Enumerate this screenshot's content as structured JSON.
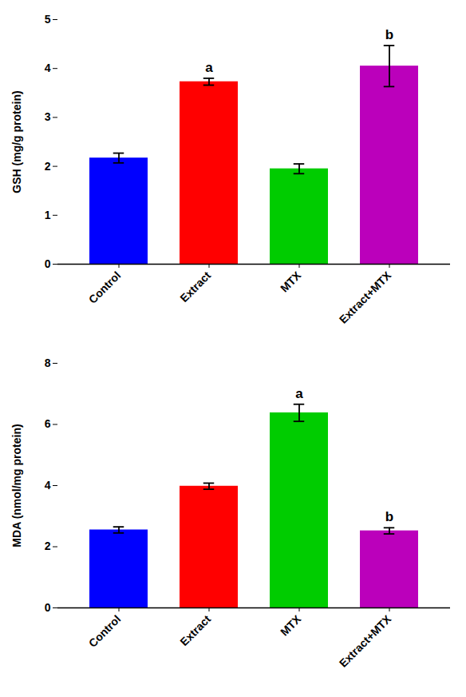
{
  "chart_data": [
    {
      "type": "bar",
      "categories": [
        "Control",
        "Extract",
        "MTX",
        "Extract+MTX"
      ],
      "values": [
        2.17,
        3.73,
        1.95,
        4.05
      ],
      "errors": [
        0.1,
        0.07,
        0.1,
        0.42
      ],
      "colors": [
        "#0000FF",
        "#FF0000",
        "#00CC00",
        "#BB00BB"
      ],
      "ylabel": "GSH (mg/g protein)",
      "ylim": [
        0,
        5
      ],
      "yticks": [
        0,
        1,
        2,
        3,
        4,
        5
      ],
      "grid": false,
      "annotations": [
        {
          "category": "Extract",
          "text": "a",
          "color": "#000000"
        },
        {
          "category": "Extract+MTX",
          "text": "b",
          "color": "#000000"
        }
      ]
    },
    {
      "type": "bar",
      "categories": [
        "Control",
        "Extract",
        "MTX",
        "Extract+MTX"
      ],
      "values": [
        2.55,
        3.98,
        6.38,
        2.52
      ],
      "errors": [
        0.1,
        0.1,
        0.28,
        0.1
      ],
      "colors": [
        "#0000FF",
        "#FF0000",
        "#00CC00",
        "#BB00BB"
      ],
      "ylabel": "MDA (nmol/mg protein)",
      "ylim": [
        0,
        8
      ],
      "yticks": [
        0,
        2,
        4,
        6,
        8
      ],
      "grid": false,
      "annotations": [
        {
          "category": "MTX",
          "text": "a",
          "color": "#000000"
        },
        {
          "category": "Extract+MTX",
          "text": "b",
          "color": "#000000"
        }
      ]
    }
  ]
}
